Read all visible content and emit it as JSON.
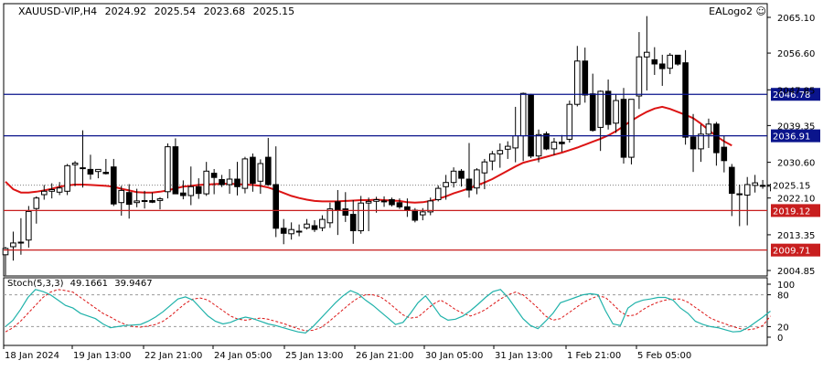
{
  "header": {
    "symbol": "XAUUSD-VIP,H4",
    "open": "2024.92",
    "high": "2025.54",
    "low": "2023.68",
    "close": "2025.15"
  },
  "logo_label": "EALogo2",
  "stoch_label": {
    "name": "Stoch(5,3,3)",
    "main": "49.1661",
    "signal": "39.9467"
  },
  "colors": {
    "bull": "#ffffff",
    "bear": "#000000",
    "ma": "#dc1414",
    "support": "#c81e1e",
    "resistance": "#0a148c",
    "stoch_main": "#20b2aa",
    "stoch_signal": "#dc1414",
    "current_price": "#808080"
  },
  "chart_data": [
    {
      "type": "candlestick",
      "title": "XAUUSD-VIP,H4",
      "ylim": [
        2004.85,
        2065.1
      ],
      "y_ticks": [
        "2065.10",
        "2056.60",
        "2047.85",
        "2039.35",
        "2030.60",
        "2022.10",
        "2013.35",
        "2004.85"
      ],
      "x_tick_labels": [
        "18 Jan 2024",
        "19 Jan 13:00",
        "22 Jan 21:00",
        "24 Jan 05:00",
        "25 Jan 13:00",
        "26 Jan 21:00",
        "30 Jan 05:00",
        "31 Jan 13:00",
        "1 Feb 21:00",
        "5 Feb 05:00"
      ],
      "current_price": "2025.15",
      "horizontal_lines": [
        {
          "label": "2046.78",
          "value": 2046.78,
          "role": "resistance"
        },
        {
          "label": "2036.91",
          "value": 2036.91,
          "role": "resistance"
        },
        {
          "label": "2019.12",
          "value": 2019.12,
          "role": "support"
        },
        {
          "label": "2009.71",
          "value": 2009.71,
          "role": "support"
        }
      ],
      "moving_average": [
        2026.0,
        2024.2,
        2023.4,
        2023.4,
        2023.6,
        2023.9,
        2024.3,
        2024.8,
        2025.1,
        2025.3,
        2025.3,
        2025.2,
        2025.1,
        2025.0,
        2024.8,
        2024.3,
        2023.9,
        2023.5,
        2023.4,
        2023.4,
        2023.6,
        2023.9,
        2024.4,
        2024.8,
        2025.0,
        2025.2,
        2025.3,
        2025.4,
        2025.5,
        2025.5,
        2025.4,
        2025.3,
        2025.2,
        2025.0,
        2024.6,
        2024.0,
        2023.3,
        2022.6,
        2022.1,
        2021.7,
        2021.4,
        2021.3,
        2021.3,
        2021.3,
        2021.4,
        2021.5,
        2021.6,
        2021.6,
        2021.7,
        2021.6,
        2021.5,
        2021.4,
        2021.1,
        2021.0,
        2021.1,
        2021.4,
        2021.9,
        2022.5,
        2023.2,
        2023.8,
        2024.4,
        2025.1,
        2025.8,
        2026.6,
        2027.6,
        2028.6,
        2029.6,
        2030.5,
        2031.0,
        2031.4,
        2031.9,
        2032.4,
        2032.9,
        2033.5,
        2034.1,
        2034.8,
        2035.5,
        2036.2,
        2037.0,
        2038.0,
        2039.2,
        2040.5,
        2041.6,
        2042.6,
        2043.4,
        2043.8,
        2043.3,
        2042.6,
        2041.9,
        2041.1,
        2039.8,
        2038.3,
        2036.8,
        2035.6,
        2034.6
      ],
      "candles": [
        {
          "o": 2008.6,
          "h": 2010.5,
          "l": 2003.7,
          "c": 2010.1
        },
        {
          "o": 2010.5,
          "h": 2014.1,
          "l": 2007.2,
          "c": 2011.4
        },
        {
          "o": 2011.5,
          "h": 2017.3,
          "l": 2008.6,
          "c": 2011.6
        },
        {
          "o": 2012.1,
          "h": 2020.2,
          "l": 2010.3,
          "c": 2018.9
        },
        {
          "o": 2019.6,
          "h": 2022.5,
          "l": 2016.0,
          "c": 2022.1
        },
        {
          "o": 2022.9,
          "h": 2025.2,
          "l": 2021.7,
          "c": 2023.7
        },
        {
          "o": 2023.7,
          "h": 2025.6,
          "l": 2022.0,
          "c": 2024.1
        },
        {
          "o": 2023.5,
          "h": 2025.9,
          "l": 2022.8,
          "c": 2024.5
        },
        {
          "o": 2023.7,
          "h": 2030.2,
          "l": 2022.8,
          "c": 2029.8
        },
        {
          "o": 2030.0,
          "h": 2030.9,
          "l": 2024.9,
          "c": 2030.4
        },
        {
          "o": 2029.1,
          "h": 2038.2,
          "l": 2024.6,
          "c": 2029.3
        },
        {
          "o": 2028.9,
          "h": 2032.4,
          "l": 2026.5,
          "c": 2027.8
        },
        {
          "o": 2028.4,
          "h": 2029.0,
          "l": 2026.8,
          "c": 2028.9
        },
        {
          "o": 2028.2,
          "h": 2031.4,
          "l": 2027.7,
          "c": 2027.9
        },
        {
          "o": 2029.5,
          "h": 2031.4,
          "l": 2020.2,
          "c": 2020.7
        },
        {
          "o": 2021.0,
          "h": 2025.0,
          "l": 2017.9,
          "c": 2023.9
        },
        {
          "o": 2023.4,
          "h": 2025.4,
          "l": 2017.2,
          "c": 2020.6
        },
        {
          "o": 2021.0,
          "h": 2024.3,
          "l": 2019.9,
          "c": 2021.4
        },
        {
          "o": 2021.5,
          "h": 2023.8,
          "l": 2019.6,
          "c": 2021.3
        },
        {
          "o": 2021.5,
          "h": 2023.4,
          "l": 2020.9,
          "c": 2021.1
        },
        {
          "o": 2021.5,
          "h": 2022.3,
          "l": 2019.4,
          "c": 2021.9
        },
        {
          "o": 2023.6,
          "h": 2035.1,
          "l": 2022.0,
          "c": 2034.3
        },
        {
          "o": 2034.3,
          "h": 2036.3,
          "l": 2023.1,
          "c": 2023.1
        },
        {
          "o": 2023.3,
          "h": 2026.3,
          "l": 2021.8,
          "c": 2022.7
        },
        {
          "o": 2022.7,
          "h": 2029.6,
          "l": 2020.4,
          "c": 2024.8
        },
        {
          "o": 2024.8,
          "h": 2026.8,
          "l": 2021.9,
          "c": 2023.2
        },
        {
          "o": 2023.1,
          "h": 2030.7,
          "l": 2022.6,
          "c": 2028.5
        },
        {
          "o": 2028.0,
          "h": 2029.0,
          "l": 2023.0,
          "c": 2027.0
        },
        {
          "o": 2026.5,
          "h": 2027.6,
          "l": 2024.7,
          "c": 2025.3
        },
        {
          "o": 2025.3,
          "h": 2029.0,
          "l": 2023.1,
          "c": 2026.6
        },
        {
          "o": 2026.6,
          "h": 2030.7,
          "l": 2022.7,
          "c": 2024.8
        },
        {
          "o": 2024.4,
          "h": 2031.9,
          "l": 2023.2,
          "c": 2031.4
        },
        {
          "o": 2031.8,
          "h": 2032.7,
          "l": 2023.6,
          "c": 2025.6
        },
        {
          "o": 2026.1,
          "h": 2031.3,
          "l": 2023.1,
          "c": 2030.3
        },
        {
          "o": 2031.8,
          "h": 2036.4,
          "l": 2025.0,
          "c": 2025.3
        },
        {
          "o": 2025.3,
          "h": 2034.4,
          "l": 2012.8,
          "c": 2014.9
        },
        {
          "o": 2014.9,
          "h": 2017.1,
          "l": 2011.1,
          "c": 2013.7
        },
        {
          "o": 2013.6,
          "h": 2016.3,
          "l": 2012.2,
          "c": 2014.6
        },
        {
          "o": 2014.0,
          "h": 2015.8,
          "l": 2013.0,
          "c": 2014.2
        },
        {
          "o": 2015.0,
          "h": 2017.1,
          "l": 2014.6,
          "c": 2015.9
        },
        {
          "o": 2015.5,
          "h": 2016.8,
          "l": 2014.0,
          "c": 2014.6
        },
        {
          "o": 2015.0,
          "h": 2018.0,
          "l": 2014.2,
          "c": 2017.0
        },
        {
          "o": 2016.2,
          "h": 2021.0,
          "l": 2015.0,
          "c": 2019.5
        },
        {
          "o": 2021.2,
          "h": 2024.0,
          "l": 2013.3,
          "c": 2019.3
        },
        {
          "o": 2019.5,
          "h": 2023.5,
          "l": 2016.4,
          "c": 2018.0
        },
        {
          "o": 2018.2,
          "h": 2021.6,
          "l": 2011.2,
          "c": 2014.3
        },
        {
          "o": 2014.3,
          "h": 2022.6,
          "l": 2013.6,
          "c": 2020.9
        },
        {
          "o": 2020.9,
          "h": 2022.2,
          "l": 2014.2,
          "c": 2021.3
        },
        {
          "o": 2021.3,
          "h": 2022.4,
          "l": 2018.6,
          "c": 2021.7
        },
        {
          "o": 2021.4,
          "h": 2022.5,
          "l": 2020.0,
          "c": 2021.4
        },
        {
          "o": 2021.7,
          "h": 2022.2,
          "l": 2020.1,
          "c": 2020.5
        },
        {
          "o": 2021.0,
          "h": 2022.0,
          "l": 2019.5,
          "c": 2020.0
        },
        {
          "o": 2020.0,
          "h": 2022.0,
          "l": 2017.6,
          "c": 2019.1
        },
        {
          "o": 2019.2,
          "h": 2019.7,
          "l": 2016.3,
          "c": 2016.8
        },
        {
          "o": 2018.1,
          "h": 2019.7,
          "l": 2016.8,
          "c": 2018.8
        },
        {
          "o": 2018.8,
          "h": 2022.2,
          "l": 2018.0,
          "c": 2021.4
        },
        {
          "o": 2021.7,
          "h": 2025.1,
          "l": 2021.3,
          "c": 2024.4
        },
        {
          "o": 2024.8,
          "h": 2027.6,
          "l": 2021.7,
          "c": 2025.8
        },
        {
          "o": 2025.8,
          "h": 2029.4,
          "l": 2024.6,
          "c": 2028.5
        },
        {
          "o": 2028.5,
          "h": 2029.0,
          "l": 2024.8,
          "c": 2026.8
        },
        {
          "o": 2026.6,
          "h": 2035.2,
          "l": 2022.2,
          "c": 2024.0
        },
        {
          "o": 2024.5,
          "h": 2029.2,
          "l": 2023.0,
          "c": 2028.8
        },
        {
          "o": 2028.1,
          "h": 2031.4,
          "l": 2024.2,
          "c": 2030.7
        },
        {
          "o": 2030.9,
          "h": 2033.3,
          "l": 2028.7,
          "c": 2032.6
        },
        {
          "o": 2032.6,
          "h": 2035.1,
          "l": 2029.3,
          "c": 2033.4
        },
        {
          "o": 2033.7,
          "h": 2035.6,
          "l": 2031.4,
          "c": 2034.4
        },
        {
          "o": 2034.0,
          "h": 2043.8,
          "l": 2030.6,
          "c": 2036.9
        },
        {
          "o": 2036.9,
          "h": 2047.2,
          "l": 2030.9,
          "c": 2047.0
        },
        {
          "o": 2046.6,
          "h": 2046.9,
          "l": 2031.6,
          "c": 2032.1
        },
        {
          "o": 2032.1,
          "h": 2038.4,
          "l": 2030.6,
          "c": 2037.2
        },
        {
          "o": 2037.4,
          "h": 2037.9,
          "l": 2033.5,
          "c": 2033.8
        },
        {
          "o": 2033.8,
          "h": 2036.4,
          "l": 2032.3,
          "c": 2035.4
        },
        {
          "o": 2035.4,
          "h": 2037.1,
          "l": 2033.1,
          "c": 2035.0
        },
        {
          "o": 2036.1,
          "h": 2045.3,
          "l": 2035.3,
          "c": 2044.4
        },
        {
          "o": 2044.4,
          "h": 2058.3,
          "l": 2043.9,
          "c": 2054.7
        },
        {
          "o": 2054.7,
          "h": 2057.9,
          "l": 2044.8,
          "c": 2046.6
        },
        {
          "o": 2046.9,
          "h": 2051.7,
          "l": 2037.9,
          "c": 2038.2
        },
        {
          "o": 2038.9,
          "h": 2047.7,
          "l": 2033.3,
          "c": 2047.5
        },
        {
          "o": 2047.5,
          "h": 2050.3,
          "l": 2038.4,
          "c": 2039.6
        },
        {
          "o": 2039.9,
          "h": 2046.8,
          "l": 2037.6,
          "c": 2045.3
        },
        {
          "o": 2045.6,
          "h": 2048.3,
          "l": 2030.3,
          "c": 2031.8
        },
        {
          "o": 2031.8,
          "h": 2045.6,
          "l": 2030.1,
          "c": 2045.6
        },
        {
          "o": 2046.4,
          "h": 2061.6,
          "l": 2043.3,
          "c": 2055.7
        },
        {
          "o": 2055.7,
          "h": 2065.4,
          "l": 2047.7,
          "c": 2056.8
        },
        {
          "o": 2055.0,
          "h": 2058.0,
          "l": 2051.4,
          "c": 2054.0
        },
        {
          "o": 2054.0,
          "h": 2056.2,
          "l": 2048.8,
          "c": 2052.9
        },
        {
          "o": 2053.0,
          "h": 2056.6,
          "l": 2051.6,
          "c": 2056.1
        },
        {
          "o": 2056.1,
          "h": 2055.7,
          "l": 2053.6,
          "c": 2054.0
        },
        {
          "o": 2054.3,
          "h": 2057.3,
          "l": 2034.8,
          "c": 2036.6
        },
        {
          "o": 2036.6,
          "h": 2042.1,
          "l": 2028.3,
          "c": 2033.8
        },
        {
          "o": 2033.8,
          "h": 2039.6,
          "l": 2030.7,
          "c": 2037.3
        },
        {
          "o": 2037.3,
          "h": 2041.0,
          "l": 2034.0,
          "c": 2039.7
        },
        {
          "o": 2039.7,
          "h": 2040.2,
          "l": 2029.8,
          "c": 2032.9
        },
        {
          "o": 2034.2,
          "h": 2036.9,
          "l": 2028.2,
          "c": 2031.0
        },
        {
          "o": 2029.4,
          "h": 2030.2,
          "l": 2017.8,
          "c": 2023.2
        },
        {
          "o": 2023.1,
          "h": 2025.3,
          "l": 2015.4,
          "c": 2023.0
        },
        {
          "o": 2022.8,
          "h": 2027.1,
          "l": 2015.6,
          "c": 2025.3
        },
        {
          "o": 2025.1,
          "h": 2027.6,
          "l": 2023.4,
          "c": 2025.7
        },
        {
          "o": 2025.1,
          "h": 2026.4,
          "l": 2024.3,
          "c": 2025.0
        },
        {
          "o": 2024.9,
          "h": 2025.5,
          "l": 2023.7,
          "c": 2025.2
        }
      ]
    },
    {
      "type": "line",
      "title": "Stoch(5,3,3)",
      "ylim": [
        0,
        100
      ],
      "y_ticks": [
        "100",
        "80",
        "20",
        "0"
      ],
      "levels": [
        80,
        20
      ],
      "series": [
        {
          "name": "main",
          "values": [
            20,
            32,
            52,
            75,
            90,
            86,
            80,
            70,
            60,
            55,
            45,
            40,
            35,
            25,
            18,
            20,
            22,
            23,
            24,
            30,
            38,
            48,
            60,
            72,
            76,
            70,
            55,
            40,
            30,
            25,
            28,
            34,
            38,
            35,
            30,
            25,
            22,
            18,
            14,
            10,
            8,
            20,
            35,
            50,
            65,
            78,
            88,
            82,
            70,
            60,
            48,
            36,
            24,
            28,
            45,
            65,
            78,
            60,
            40,
            32,
            34,
            40,
            50,
            62,
            75,
            86,
            90,
            75,
            55,
            35,
            22,
            16,
            30,
            45,
            65,
            70,
            75,
            80,
            82,
            80,
            50,
            25,
            22,
            55,
            65,
            70,
            72,
            75,
            75,
            70,
            55,
            45,
            30,
            24,
            20,
            18,
            14,
            10,
            11,
            18,
            28,
            38,
            49.1661
          ]
        },
        {
          "name": "signal",
          "values": [
            10,
            18,
            30,
            45,
            60,
            75,
            85,
            90,
            88,
            85,
            75,
            65,
            55,
            45,
            38,
            30,
            24,
            20,
            19,
            21,
            24,
            30,
            40,
            52,
            64,
            72,
            74,
            70,
            60,
            50,
            40,
            34,
            32,
            34,
            36,
            34,
            30,
            26,
            21,
            16,
            12,
            13,
            18,
            28,
            40,
            52,
            64,
            74,
            80,
            80,
            76,
            66,
            54,
            42,
            36,
            38,
            50,
            62,
            70,
            62,
            52,
            45,
            40,
            45,
            52,
            62,
            72,
            80,
            85,
            80,
            68,
            55,
            40,
            32,
            35,
            45,
            55,
            65,
            72,
            78,
            75,
            62,
            48,
            40,
            42,
            52,
            60,
            66,
            70,
            72,
            72,
            66,
            56,
            46,
            36,
            30,
            25,
            20,
            16,
            14,
            16,
            22,
            39.9467
          ]
        }
      ]
    }
  ]
}
